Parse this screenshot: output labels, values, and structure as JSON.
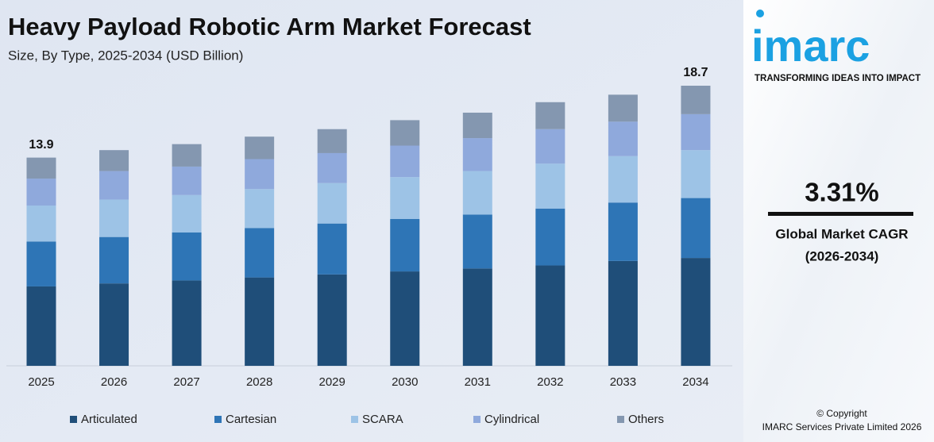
{
  "chart_data": {
    "type": "stacked_bar",
    "title": "Heavy Payload Robotic Arm Market Forecast",
    "subtitle": "Size, By Type, 2025-2034 (USD Billion)",
    "categories": [
      "2025",
      "2026",
      "2027",
      "2028",
      "2029",
      "2030",
      "2031",
      "2032",
      "2033",
      "2034"
    ],
    "series": [
      {
        "name": "Articulated",
        "color": "#1f4e79",
        "values": [
          5.3,
          5.5,
          5.7,
          5.9,
          6.1,
          6.3,
          6.5,
          6.7,
          7.0,
          7.2
        ]
      },
      {
        "name": "Cartesian",
        "color": "#2e75b6",
        "values": [
          3.0,
          3.1,
          3.2,
          3.3,
          3.4,
          3.5,
          3.6,
          3.8,
          3.9,
          4.0
        ]
      },
      {
        "name": "SCARA",
        "color": "#9dc3e6",
        "values": [
          2.4,
          2.5,
          2.5,
          2.6,
          2.7,
          2.8,
          2.9,
          3.0,
          3.1,
          3.2
        ]
      },
      {
        "name": "Cylindrical",
        "color": "#8fa9dc",
        "values": [
          1.8,
          1.9,
          1.9,
          2.0,
          2.0,
          2.1,
          2.2,
          2.3,
          2.3,
          2.4
        ]
      },
      {
        "name": "Others",
        "color": "#8497b0",
        "values": [
          1.4,
          1.4,
          1.5,
          1.5,
          1.6,
          1.7,
          1.7,
          1.8,
          1.8,
          1.9
        ]
      }
    ],
    "totals": [
      13.9,
      null,
      null,
      null,
      null,
      null,
      null,
      null,
      null,
      18.7
    ]
  },
  "sidebar": {
    "logo": "imarc",
    "tagline": "TRANSFORMING IDEAS INTO IMPACT",
    "cagr": "3.31%",
    "cagr_label": "Global Market CAGR",
    "cagr_period": "(2026-2034)",
    "copyright": "© Copyright",
    "company": "IMARC Services Private Limited 2026"
  }
}
